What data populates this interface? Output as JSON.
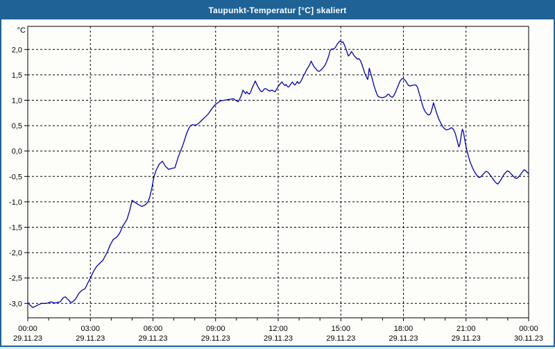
{
  "window": {
    "title": "Taupunkt-Temperatur [°C] skaliert"
  },
  "colors": {
    "titlebar_bg": "#1f6296",
    "window_border": "#1f6296",
    "chart_bg": "#fdfdfa",
    "grid": "#000000",
    "axis": "#000000",
    "text": "#000000",
    "line": "#0000a8"
  },
  "chart_data": {
    "type": "line",
    "title": "Taupunkt-Temperatur [°C] skaliert",
    "y_unit_label": "°C",
    "grid": "dashed",
    "legend": "none",
    "ylim_shown": [
      -3.28,
      2.46
    ],
    "yticks": [
      2.0,
      1.5,
      1.0,
      0.5,
      0.0,
      -0.5,
      -1.0,
      -1.5,
      -2.0,
      -2.5,
      -3.0
    ],
    "ytick_labels": [
      "2,0",
      "1,5",
      "1,0",
      "0,5",
      "0,0",
      "-0,5",
      "-1,0",
      "-1,5",
      "-2,0",
      "-2,5",
      "-3,0"
    ],
    "x_hours_range": [
      0,
      24
    ],
    "minor_tick_every_hours": 1,
    "xticks": [
      {
        "h": 0,
        "time": "00:00",
        "date": "29.11.23"
      },
      {
        "h": 3,
        "time": "03:00",
        "date": "29.11.23"
      },
      {
        "h": 6,
        "time": "06:00",
        "date": "29.11.23"
      },
      {
        "h": 9,
        "time": "09:00",
        "date": "29.11.23"
      },
      {
        "h": 12,
        "time": "12:00",
        "date": "29.11.23"
      },
      {
        "h": 15,
        "time": "15:00",
        "date": "29.11.23"
      },
      {
        "h": 18,
        "time": "18:00",
        "date": "29.11.23"
      },
      {
        "h": 21,
        "time": "21:00",
        "date": "29.11.23"
      },
      {
        "h": 24,
        "time": "00:00",
        "date": "30.11.23"
      }
    ],
    "series": [
      {
        "name": "Taupunkt-Temperatur",
        "color": "#0000a8",
        "points": [
          [
            0,
            -2.98
          ],
          [
            0.1,
            -3.03
          ],
          [
            0.25,
            -3.08
          ],
          [
            0.45,
            -3.04
          ],
          [
            0.65,
            -3.0
          ],
          [
            0.9,
            -3.0
          ],
          [
            1.1,
            -2.97
          ],
          [
            1.3,
            -2.99
          ],
          [
            1.55,
            -2.97
          ],
          [
            1.7,
            -2.89
          ],
          [
            1.8,
            -2.87
          ],
          [
            1.95,
            -2.93
          ],
          [
            2.05,
            -2.98
          ],
          [
            2.15,
            -2.97
          ],
          [
            2.3,
            -2.91
          ],
          [
            2.45,
            -2.8
          ],
          [
            2.6,
            -2.74
          ],
          [
            2.75,
            -2.71
          ],
          [
            2.85,
            -2.62
          ],
          [
            3.0,
            -2.5
          ],
          [
            3.15,
            -2.37
          ],
          [
            3.3,
            -2.27
          ],
          [
            3.45,
            -2.21
          ],
          [
            3.6,
            -2.15
          ],
          [
            3.8,
            -2.0
          ],
          [
            3.95,
            -1.85
          ],
          [
            4.1,
            -1.74
          ],
          [
            4.25,
            -1.7
          ],
          [
            4.4,
            -1.62
          ],
          [
            4.55,
            -1.48
          ],
          [
            4.75,
            -1.35
          ],
          [
            4.88,
            -1.18
          ],
          [
            5.0,
            -0.97
          ],
          [
            5.1,
            -1.0
          ],
          [
            5.25,
            -1.04
          ],
          [
            5.45,
            -1.09
          ],
          [
            5.6,
            -1.07
          ],
          [
            5.75,
            -1.01
          ],
          [
            5.85,
            -0.9
          ],
          [
            5.95,
            -0.72
          ],
          [
            6.05,
            -0.5
          ],
          [
            6.15,
            -0.38
          ],
          [
            6.3,
            -0.26
          ],
          [
            6.45,
            -0.2
          ],
          [
            6.6,
            -0.3
          ],
          [
            6.75,
            -0.36
          ],
          [
            6.9,
            -0.34
          ],
          [
            7.05,
            -0.33
          ],
          [
            7.2,
            -0.13
          ],
          [
            7.3,
            -0.02
          ],
          [
            7.4,
            0.08
          ],
          [
            7.5,
            0.2
          ],
          [
            7.6,
            0.33
          ],
          [
            7.7,
            0.43
          ],
          [
            7.8,
            0.5
          ],
          [
            7.9,
            0.52
          ],
          [
            8.0,
            0.51
          ],
          [
            8.1,
            0.52
          ],
          [
            8.2,
            0.55
          ],
          [
            8.35,
            0.61
          ],
          [
            8.5,
            0.67
          ],
          [
            8.65,
            0.73
          ],
          [
            8.8,
            0.82
          ],
          [
            8.95,
            0.9
          ],
          [
            9.1,
            0.95
          ],
          [
            9.25,
            0.99
          ],
          [
            9.4,
            1.0
          ],
          [
            9.55,
            1.01
          ],
          [
            9.7,
            1.02
          ],
          [
            9.85,
            1.03
          ],
          [
            10.0,
            0.99
          ],
          [
            10.08,
            0.97
          ],
          [
            10.15,
            1.02
          ],
          [
            10.22,
            1.08
          ],
          [
            10.31,
            1.2
          ],
          [
            10.38,
            1.16
          ],
          [
            10.44,
            1.13
          ],
          [
            10.49,
            1.17
          ],
          [
            10.55,
            1.14
          ],
          [
            10.62,
            1.12
          ],
          [
            10.68,
            1.16
          ],
          [
            10.73,
            1.22
          ],
          [
            10.78,
            1.27
          ],
          [
            10.84,
            1.32
          ],
          [
            10.9,
            1.38
          ],
          [
            10.98,
            1.31
          ],
          [
            11.04,
            1.26
          ],
          [
            11.1,
            1.22
          ],
          [
            11.16,
            1.18
          ],
          [
            11.22,
            1.17
          ],
          [
            11.28,
            1.19
          ],
          [
            11.33,
            1.22
          ],
          [
            11.38,
            1.23
          ],
          [
            11.44,
            1.22
          ],
          [
            11.5,
            1.2
          ],
          [
            11.6,
            1.18
          ],
          [
            11.7,
            1.2
          ],
          [
            11.78,
            1.18
          ],
          [
            11.85,
            1.17
          ],
          [
            11.93,
            1.22
          ],
          [
            12.0,
            1.27
          ],
          [
            12.05,
            1.3
          ],
          [
            12.11,
            1.33
          ],
          [
            12.18,
            1.36
          ],
          [
            12.25,
            1.32
          ],
          [
            12.32,
            1.29
          ],
          [
            12.38,
            1.31
          ],
          [
            12.44,
            1.27
          ],
          [
            12.5,
            1.26
          ],
          [
            12.56,
            1.29
          ],
          [
            12.62,
            1.33
          ],
          [
            12.68,
            1.36
          ],
          [
            12.74,
            1.32
          ],
          [
            12.8,
            1.3
          ],
          [
            12.86,
            1.33
          ],
          [
            12.92,
            1.37
          ],
          [
            12.98,
            1.33
          ],
          [
            13.05,
            1.35
          ],
          [
            13.12,
            1.4
          ],
          [
            13.2,
            1.47
          ],
          [
            13.28,
            1.53
          ],
          [
            13.36,
            1.6
          ],
          [
            13.44,
            1.65
          ],
          [
            13.52,
            1.71
          ],
          [
            13.58,
            1.77
          ],
          [
            13.65,
            1.71
          ],
          [
            13.72,
            1.66
          ],
          [
            13.8,
            1.62
          ],
          [
            13.88,
            1.58
          ],
          [
            13.97,
            1.57
          ],
          [
            14.06,
            1.6
          ],
          [
            14.15,
            1.64
          ],
          [
            14.24,
            1.69
          ],
          [
            14.32,
            1.76
          ],
          [
            14.41,
            1.86
          ],
          [
            14.49,
            1.98
          ],
          [
            14.55,
            2.01
          ],
          [
            14.63,
            2.01
          ],
          [
            14.7,
            2.02
          ],
          [
            14.77,
            2.06
          ],
          [
            14.84,
            2.11
          ],
          [
            14.92,
            2.15
          ],
          [
            14.98,
            2.17
          ],
          [
            15.04,
            2.14
          ],
          [
            15.1,
            2.15
          ],
          [
            15.16,
            2.1
          ],
          [
            15.22,
            2.04
          ],
          [
            15.29,
            1.96
          ],
          [
            15.36,
            1.87
          ],
          [
            15.43,
            1.9
          ],
          [
            15.51,
            1.96
          ],
          [
            15.58,
            1.92
          ],
          [
            15.65,
            1.87
          ],
          [
            15.73,
            1.84
          ],
          [
            15.8,
            1.81
          ],
          [
            15.87,
            1.82
          ],
          [
            15.94,
            1.78
          ],
          [
            16.01,
            1.71
          ],
          [
            16.08,
            1.62
          ],
          [
            16.15,
            1.53
          ],
          [
            16.22,
            1.46
          ],
          [
            16.29,
            1.41
          ],
          [
            16.36,
            1.63
          ],
          [
            16.42,
            1.55
          ],
          [
            16.48,
            1.46
          ],
          [
            16.54,
            1.37
          ],
          [
            16.6,
            1.27
          ],
          [
            16.67,
            1.19
          ],
          [
            16.73,
            1.12
          ],
          [
            16.8,
            1.07
          ],
          [
            16.88,
            1.06
          ],
          [
            16.98,
            1.05
          ],
          [
            17.08,
            1.06
          ],
          [
            17.18,
            1.08
          ],
          [
            17.26,
            1.12
          ],
          [
            17.32,
            1.11
          ],
          [
            17.4,
            1.07
          ],
          [
            17.48,
            1.06
          ],
          [
            17.55,
            1.1
          ],
          [
            17.62,
            1.16
          ],
          [
            17.69,
            1.23
          ],
          [
            17.76,
            1.3
          ],
          [
            17.83,
            1.37
          ],
          [
            17.9,
            1.41
          ],
          [
            17.97,
            1.43
          ],
          [
            18.04,
            1.41
          ],
          [
            18.11,
            1.38
          ],
          [
            18.18,
            1.33
          ],
          [
            18.25,
            1.29
          ],
          [
            18.32,
            1.28
          ],
          [
            18.4,
            1.29
          ],
          [
            18.5,
            1.3
          ],
          [
            18.6,
            1.3
          ],
          [
            18.68,
            1.25
          ],
          [
            18.75,
            1.14
          ],
          [
            18.82,
            1.05
          ],
          [
            18.88,
            0.95
          ],
          [
            18.94,
            0.87
          ],
          [
            19.0,
            0.81
          ],
          [
            19.07,
            0.76
          ],
          [
            19.14,
            0.73
          ],
          [
            19.2,
            0.71
          ],
          [
            19.27,
            0.72
          ],
          [
            19.33,
            0.77
          ],
          [
            19.39,
            0.86
          ],
          [
            19.44,
            0.95
          ],
          [
            19.49,
            0.89
          ],
          [
            19.54,
            0.82
          ],
          [
            19.6,
            0.74
          ],
          [
            19.66,
            0.67
          ],
          [
            19.72,
            0.61
          ],
          [
            19.78,
            0.56
          ],
          [
            19.84,
            0.51
          ],
          [
            19.9,
            0.47
          ],
          [
            19.97,
            0.44
          ],
          [
            20.04,
            0.42
          ],
          [
            20.11,
            0.42
          ],
          [
            20.18,
            0.43
          ],
          [
            20.25,
            0.45
          ],
          [
            20.31,
            0.46
          ],
          [
            20.37,
            0.44
          ],
          [
            20.43,
            0.4
          ],
          [
            20.49,
            0.34
          ],
          [
            20.55,
            0.25
          ],
          [
            20.61,
            0.15
          ],
          [
            20.66,
            0.08
          ],
          [
            20.71,
            0.14
          ],
          [
            20.75,
            0.25
          ],
          [
            20.79,
            0.36
          ],
          [
            20.83,
            0.43
          ],
          [
            20.87,
            0.39
          ],
          [
            20.91,
            0.3
          ],
          [
            20.96,
            0.18
          ],
          [
            21.01,
            0.07
          ],
          [
            21.06,
            -0.02
          ],
          [
            21.12,
            -0.11
          ],
          [
            21.18,
            -0.2
          ],
          [
            21.25,
            -0.27
          ],
          [
            21.31,
            -0.33
          ],
          [
            21.38,
            -0.39
          ],
          [
            21.45,
            -0.44
          ],
          [
            21.52,
            -0.48
          ],
          [
            21.58,
            -0.51
          ],
          [
            21.64,
            -0.52
          ],
          [
            21.7,
            -0.51
          ],
          [
            21.77,
            -0.48
          ],
          [
            21.84,
            -0.45
          ],
          [
            21.9,
            -0.42
          ],
          [
            21.97,
            -0.4
          ],
          [
            22.03,
            -0.41
          ],
          [
            22.1,
            -0.44
          ],
          [
            22.17,
            -0.48
          ],
          [
            22.24,
            -0.52
          ],
          [
            22.31,
            -0.56
          ],
          [
            22.38,
            -0.6
          ],
          [
            22.45,
            -0.63
          ],
          [
            22.52,
            -0.65
          ],
          [
            22.58,
            -0.62
          ],
          [
            22.65,
            -0.58
          ],
          [
            22.72,
            -0.53
          ],
          [
            22.79,
            -0.48
          ],
          [
            22.86,
            -0.44
          ],
          [
            22.93,
            -0.41
          ],
          [
            23.0,
            -0.39
          ],
          [
            23.07,
            -0.41
          ],
          [
            23.14,
            -0.44
          ],
          [
            23.21,
            -0.47
          ],
          [
            23.28,
            -0.5
          ],
          [
            23.35,
            -0.53
          ],
          [
            23.42,
            -0.54
          ],
          [
            23.49,
            -0.52
          ],
          [
            23.56,
            -0.49
          ],
          [
            23.63,
            -0.45
          ],
          [
            23.7,
            -0.41
          ],
          [
            23.77,
            -0.37
          ],
          [
            23.84,
            -0.38
          ],
          [
            23.91,
            -0.41
          ],
          [
            24.0,
            -0.45
          ]
        ]
      }
    ]
  }
}
